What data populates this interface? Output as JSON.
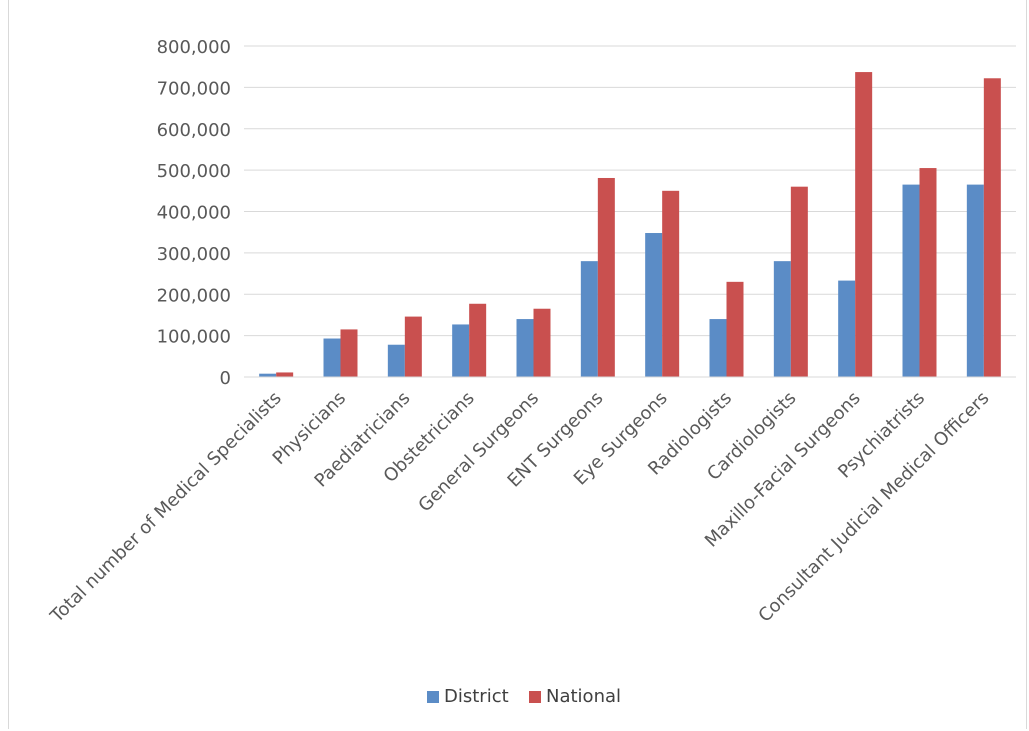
{
  "chart_data": {
    "type": "bar",
    "categories": [
      "Total number of Medical Specialists",
      "Physicians",
      "Paediatricians",
      "Obstetricians",
      "General Surgeons",
      "ENT Surgeons",
      "Eye Surgeons",
      "Radiologists",
      "Cardiologists",
      "Maxillo-Facial Surgeons",
      "Psychiatrists",
      "Consultant Judicial Medical Officers"
    ],
    "series": [
      {
        "name": "District",
        "color": "#5b8cc6",
        "values": [
          8000,
          93000,
          78000,
          127000,
          140000,
          280000,
          348000,
          140000,
          280000,
          233000,
          465000,
          465000
        ]
      },
      {
        "name": "National",
        "color": "#c9504f",
        "values": [
          11000,
          115000,
          146000,
          177000,
          165000,
          481000,
          450000,
          230000,
          460000,
          737000,
          505000,
          722000
        ]
      }
    ],
    "yticks": [
      "0",
      "100,000",
      "200,000",
      "300,000",
      "400,000",
      "500,000",
      "600,000",
      "700,000",
      "800,000"
    ],
    "ylim": [
      0,
      800000
    ],
    "grid": true,
    "legend_position": "bottom"
  }
}
